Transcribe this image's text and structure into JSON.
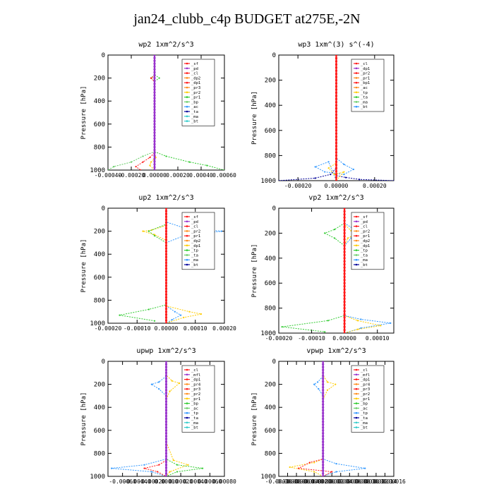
{
  "title": "jan24_clubb_c4p  BUDGET at275E,-2N",
  "colors": {
    "purple": "#9933cc",
    "violet": "#7a00b0",
    "red": "#ff1a1a",
    "orange": "#ff8c1a",
    "yellow": "#ffcc00",
    "green": "#33cc33",
    "ltgreen": "#66cc66",
    "blue": "#3399ff",
    "navy": "#000099",
    "cyan": "#33cccc",
    "black": "#000000"
  },
  "chart_data": [
    {
      "type": "line",
      "title": "wp2  1xm^2/s^3",
      "ylabel": "Pressure [hPa]",
      "ylim": [
        0,
        1000
      ],
      "yticks": [
        "0",
        "200",
        "400",
        "600",
        "800",
        "1000"
      ],
      "xlim": [
        -0.0004,
        0.0006
      ],
      "xticks": [
        "-0.00040",
        "-0.00020",
        "0.00000",
        "0.00020",
        "0.00040",
        "0.00060"
      ],
      "legend": [
        "_sf",
        "_pd",
        "_cl",
        "_dp2",
        "_dp1",
        "_pr3",
        "_pr2",
        "_pr1",
        "_bp",
        "_ac",
        "_ta",
        "_ma",
        "_bt"
      ],
      "series": [
        {
          "name": "_pr2",
          "color": "yellow",
          "x": [
            0,
            0,
            -3e-05,
            0,
            0,
            1e-05,
            -3e-05,
            -4e-05,
            0
          ],
          "y": [
            0,
            180,
            200,
            230,
            840,
            890,
            930,
            960,
            1000
          ]
        },
        {
          "name": "_bp",
          "color": "green",
          "x": [
            0,
            0,
            4e-05,
            0,
            0,
            0.0001,
            0.0003,
            0.00045,
            0.0006
          ],
          "y": [
            0,
            170,
            200,
            230,
            840,
            880,
            930,
            960,
            1000
          ]
        },
        {
          "name": "_pr1",
          "color": "ltgreen",
          "x": [
            0,
            0,
            -3e-05,
            0,
            0,
            -0.0001,
            -0.0002,
            -0.00035,
            -0.0004
          ],
          "y": [
            0,
            170,
            200,
            230,
            840,
            880,
            930,
            970,
            1000
          ]
        },
        {
          "name": "_dp1",
          "color": "red",
          "x": [
            0,
            0,
            -3e-05,
            0,
            0,
            -4e-05,
            -0.0001,
            -0.00016,
            -0.00012
          ],
          "y": [
            0,
            180,
            200,
            230,
            850,
            890,
            930,
            970,
            1000
          ]
        },
        {
          "name": "_pd",
          "color": "purple",
          "x": [
            0,
            0
          ],
          "y": [
            0,
            1000
          ]
        }
      ]
    },
    {
      "type": "line",
      "title": "wp3  1xm^(3) s^(-4)",
      "ylabel": "Pressure [hPa]",
      "ylim": [
        0,
        1000
      ],
      "yticks": [
        "0",
        "200",
        "400",
        "600",
        "800",
        "1000"
      ],
      "xlim": [
        -0.0003,
        0.0003
      ],
      "xticks": [
        "-0.00020",
        "0.00000",
        "0.00020"
      ],
      "legend": [
        "_cl",
        "_dp1",
        "_pr2",
        "_pr1",
        "_bp1",
        "_ac",
        "_tp",
        "_ta",
        "_ma",
        "_bt"
      ],
      "series": [
        {
          "name": "_tp",
          "color": "blue",
          "x": [
            0,
            0,
            4e-05,
            9e-05,
            4e-05,
            -6e-05,
            -0.00011,
            -4e-05,
            0
          ],
          "y": [
            0,
            820,
            870,
            910,
            950,
            930,
            890,
            850,
            1000
          ]
        },
        {
          "name": "_ta",
          "color": "navy",
          "x": [
            0,
            0,
            -3e-05,
            -0.00011,
            -0.0003
          ],
          "y": [
            0,
            900,
            950,
            980,
            1000
          ]
        },
        {
          "name": "_ta",
          "color": "navy",
          "x": [
            0,
            5e-05,
            0.00012,
            0.0003
          ],
          "y": [
            960,
            975,
            990,
            1000
          ]
        },
        {
          "name": "_pr2",
          "color": "yellow",
          "x": [
            0,
            0,
            -4e-05,
            -1e-05,
            4e-05,
            0
          ],
          "y": [
            0,
            860,
            900,
            950,
            930,
            1000
          ]
        },
        {
          "name": "_dp1",
          "color": "red",
          "x": [
            0,
            0
          ],
          "y": [
            0,
            1000
          ]
        }
      ]
    },
    {
      "type": "line",
      "title": "up2  1xm^2/s^3",
      "ylabel": "Pressure [hPa]",
      "ylim": [
        0,
        1000
      ],
      "yticks": [
        "0",
        "200",
        "400",
        "600",
        "800",
        "1000"
      ],
      "xlim": [
        -0.0002,
        0.0002
      ],
      "xticks": [
        "-0.00020",
        "-0.00010",
        "0.00000",
        "0.00010",
        "0.00020"
      ],
      "legend": [
        "_sf",
        "_pd",
        "_cl",
        "_pr2",
        "_pr1",
        "_dp2",
        "_dp1",
        "_tp",
        "_ta",
        "_ma",
        "_bt"
      ],
      "series": [
        {
          "name": "_tp",
          "color": "blue",
          "x": [
            0,
            0,
            6e-05,
            0.00019,
            6e-05,
            0,
            0,
            3e-05,
            5e-05,
            2e-05,
            0
          ],
          "y": [
            0,
            120,
            170,
            200,
            240,
            300,
            850,
            900,
            930,
            970,
            1000
          ]
        },
        {
          "name": "_pr2",
          "color": "yellow",
          "x": [
            0,
            0,
            -5e-05,
            -8e-05,
            -4e-05,
            0,
            0,
            8e-05,
            0.00012,
            6e-05,
            0
          ],
          "y": [
            0,
            150,
            190,
            200,
            230,
            280,
            850,
            900,
            920,
            950,
            1000
          ]
        },
        {
          "name": "_dp1",
          "color": "green",
          "x": [
            0,
            0,
            -6e-05,
            -4e-05,
            0,
            0,
            -6e-05,
            -0.00016,
            -4e-05
          ],
          "y": [
            0,
            140,
            200,
            240,
            300,
            840,
            880,
            930,
            980
          ]
        },
        {
          "name": "_cl",
          "color": "red",
          "x": [
            0,
            0
          ],
          "y": [
            0,
            1000
          ]
        }
      ]
    },
    {
      "type": "line",
      "title": "vp2  1xm^2/s^3",
      "ylabel": "Pressure [hPa]",
      "ylim": [
        0,
        1000
      ],
      "yticks": [
        "0",
        "200",
        "400",
        "600",
        "800",
        "1000"
      ],
      "xlim": [
        -0.0002,
        0.00015
      ],
      "xticks": [
        "-0.00020",
        "-0.00010",
        "0.00000",
        "0.00010"
      ],
      "legend": [
        "_sf",
        "_pd",
        "_cl",
        "_pr2",
        "_pr1",
        "_dp2",
        "_dp1",
        "_tp",
        "_ta",
        "_ma",
        "_bt"
      ],
      "series": [
        {
          "name": "_tp",
          "color": "blue",
          "x": [
            0,
            0,
            3e-05,
            5e-05,
            2e-05,
            0,
            0,
            5e-05,
            0.00014,
            5e-05,
            0
          ],
          "y": [
            0,
            120,
            170,
            200,
            240,
            300,
            860,
            890,
            920,
            960,
            1000
          ]
        },
        {
          "name": "_pr2",
          "color": "yellow",
          "x": [
            0,
            0,
            2e-05,
            4e-05,
            1e-05,
            0,
            0,
            4e-05,
            0.00011,
            4e-05,
            0
          ],
          "y": [
            0,
            130,
            180,
            200,
            240,
            300,
            860,
            900,
            940,
            970,
            1000
          ]
        },
        {
          "name": "_dp1",
          "color": "green",
          "x": [
            0,
            0,
            -3e-05,
            -6e-05,
            -3e-05,
            0,
            0,
            -5e-05,
            -0.00019,
            -6e-05
          ],
          "y": [
            0,
            120,
            170,
            200,
            240,
            300,
            860,
            900,
            950,
            990
          ]
        },
        {
          "name": "_cl",
          "color": "red",
          "x": [
            0,
            0
          ],
          "y": [
            0,
            1000
          ]
        }
      ]
    },
    {
      "type": "line",
      "title": "upwp  1xm^2/s^3",
      "ylabel": "Pressure [hPa]",
      "ylim": [
        0,
        1000
      ],
      "yticks": [
        "0",
        "200",
        "400",
        "600",
        "800",
        "1000"
      ],
      "xlim": [
        -0.0008,
        0.0008
      ],
      "xticks": [
        "-0.00060",
        "-0.00040",
        "-0.00020",
        "0.00000",
        "0.00020",
        "0.00040",
        "0.00060",
        "0.00080"
      ],
      "legend": [
        "_cl",
        "_mfl",
        "_dp1",
        "_pr4",
        "_pr3",
        "_pr2",
        "_pr1",
        "_bp",
        "_ac",
        "_tp",
        "_ta",
        "_ma",
        "_bt"
      ],
      "series": [
        {
          "name": "_tp",
          "color": "blue",
          "x": [
            0,
            0,
            -0.0001,
            -0.0002,
            -0.0001,
            0,
            0,
            -0.0003,
            -0.00075,
            -0.0002,
            0
          ],
          "y": [
            0,
            130,
            180,
            200,
            240,
            300,
            850,
            900,
            930,
            960,
            1000
          ]
        },
        {
          "name": "_pr2",
          "color": "yellow",
          "x": [
            0,
            0,
            8e-05,
            0.00018,
            5e-05,
            0,
            0,
            0.0001,
            0.0003,
            5e-05,
            0
          ],
          "y": [
            0,
            120,
            170,
            190,
            260,
            330,
            700,
            860,
            900,
            960,
            1000
          ]
        },
        {
          "name": "_bp",
          "color": "green",
          "x": [
            0,
            0,
            0.00015,
            0.0005,
            0.00015,
            0
          ],
          "y": [
            0,
            850,
            900,
            930,
            960,
            1000
          ]
        },
        {
          "name": "_dp1",
          "color": "red",
          "x": [
            0,
            0,
            -0.0001,
            -0.0003,
            -0.00012,
            0
          ],
          "y": [
            0,
            860,
            900,
            930,
            960,
            1000
          ]
        },
        {
          "name": "_cl",
          "color": "purple",
          "x": [
            0,
            0
          ],
          "y": [
            0,
            1000
          ]
        }
      ]
    },
    {
      "type": "line",
      "title": "vpwp  1xm^2/s^3",
      "ylabel": "Pressure [hPa]",
      "ylim": [
        0,
        1000
      ],
      "yticks": [
        "0",
        "200",
        "400",
        "600",
        "800",
        "1000"
      ],
      "xlim": [
        -0.0001,
        0.00016
      ],
      "xticks": [
        "-0.00010",
        "-0.00008",
        "-0.00006",
        "-0.00004",
        "-0.00002",
        "0.00000",
        "0.00002",
        "0.00004",
        "0.00006",
        "0.00008",
        "0.00010",
        "0.00012",
        "0.00014",
        "0.00016"
      ],
      "legend": [
        "_cl",
        "_mfl",
        "_dp1",
        "_pr4",
        "_pr3",
        "_pr2",
        "_pr1",
        "_bp",
        "_ac",
        "_tp",
        "_ta",
        "_ma",
        "_bt"
      ],
      "series": [
        {
          "name": "_tp",
          "color": "blue",
          "x": [
            0,
            0,
            -1.2e-05,
            -2e-05,
            -1e-05,
            0,
            0,
            3e-05,
            9.5e-05,
            3e-05,
            0
          ],
          "y": [
            0,
            130,
            180,
            200,
            240,
            300,
            850,
            890,
            930,
            960,
            1000
          ]
        },
        {
          "name": "_pr2",
          "color": "yellow",
          "x": [
            0,
            0,
            1e-05,
            2.8e-05,
            1e-05,
            0,
            0,
            -2e-05,
            -7.5e-05,
            -2e-05,
            0
          ],
          "y": [
            0,
            120,
            180,
            200,
            250,
            330,
            850,
            880,
            920,
            960,
            1000
          ]
        },
        {
          "name": "_dp1",
          "color": "red",
          "x": [
            0,
            0,
            -3e-05,
            -5.5e-05,
            2e-05,
            0
          ],
          "y": [
            0,
            850,
            880,
            930,
            960,
            1000
          ]
        },
        {
          "name": "_cl",
          "color": "purple",
          "x": [
            0,
            0
          ],
          "y": [
            0,
            1000
          ]
        }
      ]
    }
  ]
}
